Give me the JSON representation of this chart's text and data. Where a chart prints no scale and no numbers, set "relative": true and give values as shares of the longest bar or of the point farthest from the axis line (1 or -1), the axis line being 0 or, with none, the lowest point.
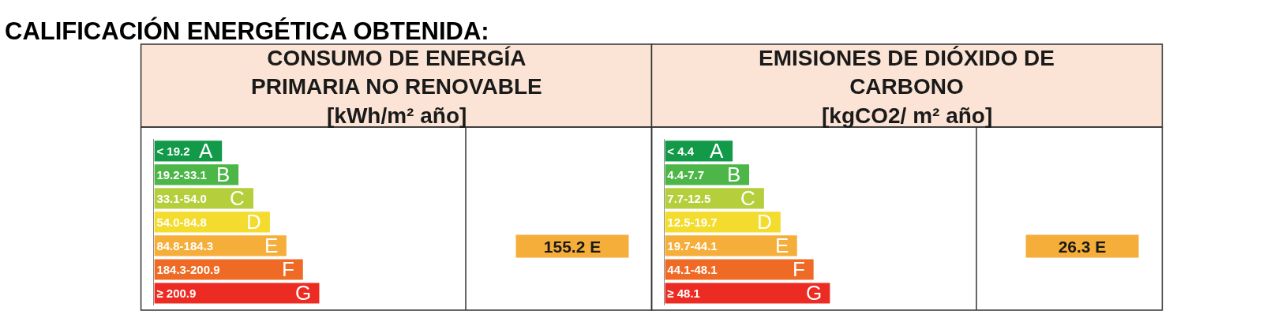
{
  "chart_data": [
    {
      "type": "other",
      "title": "CALIFICACIÓN ENERGÉTICA OBTENIDA:"
    },
    {
      "type": "bar",
      "orientation": "horizontal",
      "relative": true,
      "title": "CONSUMO DE ENERGÍA PRIMARIA NO RENOVABLE",
      "subtitle": "[kWh/m² año]",
      "categories": [
        "< 19.2",
        "19.2-33.1",
        "33.1-54.0",
        "54.0-84.8",
        "84.8-184.3",
        "184.3-200.9",
        "≥ 200.9"
      ],
      "values": [
        0.41,
        0.51,
        0.6,
        0.7,
        0.8,
        0.9,
        1
      ],
      "colors": [
        "#129a48",
        "#4cb648",
        "#b4cf3b",
        "#f3dc2e",
        "#f6ae3a",
        "#ef6a25",
        "#ec2b22"
      ],
      "annotations": [
        {
          "text": "A",
          "x": 0.41,
          "y": "< 19.2"
        },
        {
          "text": "B",
          "x": 0.51,
          "y": "19.2-33.1"
        },
        {
          "text": "C",
          "x": 0.6,
          "y": "33.1-54.0"
        },
        {
          "text": "D",
          "x": 0.7,
          "y": "54.0-84.8"
        },
        {
          "text": "E",
          "x": 0.8,
          "y": "84.8-184.3"
        },
        {
          "text": "F",
          "x": 0.9,
          "y": "184.3-200.9"
        },
        {
          "text": "G",
          "x": 1,
          "y": "≥ 200.9"
        },
        "155.2 E"
      ]
    },
    {
      "type": "bar",
      "orientation": "horizontal",
      "relative": true,
      "title": "EMISIONES DE DIÓXIDO DE CARBONO",
      "subtitle": "[kgCO2/ m² año]",
      "categories": [
        "< 4.4",
        "4.4-7.7",
        "7.7-12.5",
        "12.5-19.7",
        "19.7-44.1",
        "44.1-48.1",
        "≥ 48.1"
      ],
      "values": [
        0.41,
        0.51,
        0.6,
        0.7,
        0.8,
        0.9,
        1
      ],
      "colors": [
        "#129a48",
        "#4cb648",
        "#b4cf3b",
        "#f3dc2e",
        "#f6ae3a",
        "#ef6a25",
        "#ec2b22"
      ],
      "annotations": [
        {
          "text": "A",
          "x": 0.41,
          "y": "< 4.4"
        },
        {
          "text": "B",
          "x": 0.51,
          "y": "4.4-7.7"
        },
        {
          "text": "C",
          "x": 0.6,
          "y": "7.7-12.5"
        },
        {
          "text": "D",
          "x": 0.7,
          "y": "12.5-19.7"
        },
        {
          "text": "E",
          "x": 0.8,
          "y": "19.7-44.1"
        },
        {
          "text": "F",
          "x": 0.9,
          "y": "44.1-48.1"
        },
        {
          "text": "G",
          "x": 1,
          "y": "≥ 48.1"
        },
        "26.3 E"
      ]
    }
  ]
}
